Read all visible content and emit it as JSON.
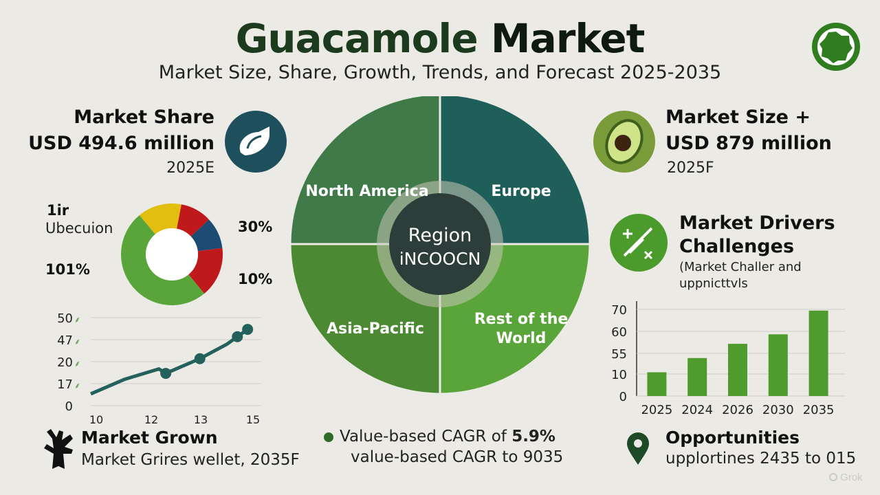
{
  "header": {
    "title_part1": "Guacamole",
    "title_part2": "Market",
    "subtitle": "Market Size, Share, Growth, Trends, and Forecast 2025-2035"
  },
  "market_share": {
    "label": "Market Share",
    "value": "USD 494.6 million",
    "year": "2025E"
  },
  "market_size": {
    "label": "Market Size +",
    "value": "USD 879 million",
    "year": "2025F"
  },
  "donut_labels": {
    "top_left_1": "1ir",
    "top_left_2": "Ubecuion",
    "left_pct": "101%",
    "right_top_pct": "30%",
    "right_bottom_pct": "10%"
  },
  "drivers": {
    "title_1": "Market Drivers",
    "title_2": "Challenges",
    "desc_1": "(Market Challer and",
    "desc_2": "uppnicttvls"
  },
  "growth": {
    "title": "Market Grown",
    "desc": "Market Grires wellet, 2035F"
  },
  "cagr": {
    "line1_prefix": "Value-based CAGR of ",
    "line1_value": "5.9%",
    "line2": "value-based CAGR to 9035"
  },
  "opportunities": {
    "title": "Opportunities",
    "desc": "upplortines 2435 to 015"
  },
  "watermark": "Grok",
  "colors": {
    "dark_teal": "#1f5f5a",
    "light_green": "#5aa53a",
    "mid_green": "#3f7a48",
    "deep_green": "#4b8a32",
    "center": "#2d3d3a",
    "badge_teal": "#1d4f5c",
    "yellow": "#e1be0f",
    "red": "#c0191b",
    "navy": "#1c4b74"
  },
  "chart_data": [
    {
      "type": "pie",
      "title": "",
      "center_label_1": "Region",
      "center_label_2": "iNCOOCN",
      "slices": [
        {
          "label": "North America",
          "value": 25
        },
        {
          "label": "Europe",
          "value": 25
        },
        {
          "label": "Rest of the World",
          "value": 25
        },
        {
          "label": "Asia-Pacific",
          "value": 25
        }
      ]
    },
    {
      "type": "pie",
      "title": "",
      "slices": [
        {
          "label": "",
          "value": 14,
          "color": "#e1be0f"
        },
        {
          "label": "",
          "value": 10,
          "color": "#c0191b"
        },
        {
          "label": "",
          "value": 10,
          "color": "#1c4b74"
        },
        {
          "label": "",
          "value": 16,
          "color": "#c0191b"
        },
        {
          "label": "",
          "value": 50,
          "color": "#5aa53a"
        }
      ]
    },
    {
      "type": "line",
      "title": "",
      "x_ticks": [
        "10",
        "12",
        "13",
        "15"
      ],
      "y_ticks": [
        "0",
        "17",
        "20",
        "47",
        "50"
      ],
      "x": [
        10,
        11,
        12,
        12.2,
        13,
        13.2,
        14,
        14.3,
        14.6
      ],
      "y": [
        8,
        18,
        25,
        22,
        30,
        32,
        42,
        47,
        52
      ],
      "xlim": [
        10,
        15
      ],
      "ylim": [
        0,
        60
      ],
      "grid": true
    },
    {
      "type": "bar",
      "title": "",
      "categories": [
        "2025",
        "2024",
        "2026",
        "2030",
        "2035"
      ],
      "values": [
        20,
        32,
        44,
        52,
        72
      ],
      "y_ticks": [
        "0",
        "10",
        "55",
        "60",
        "70"
      ],
      "ylim": [
        0,
        80
      ],
      "grid": true
    }
  ]
}
